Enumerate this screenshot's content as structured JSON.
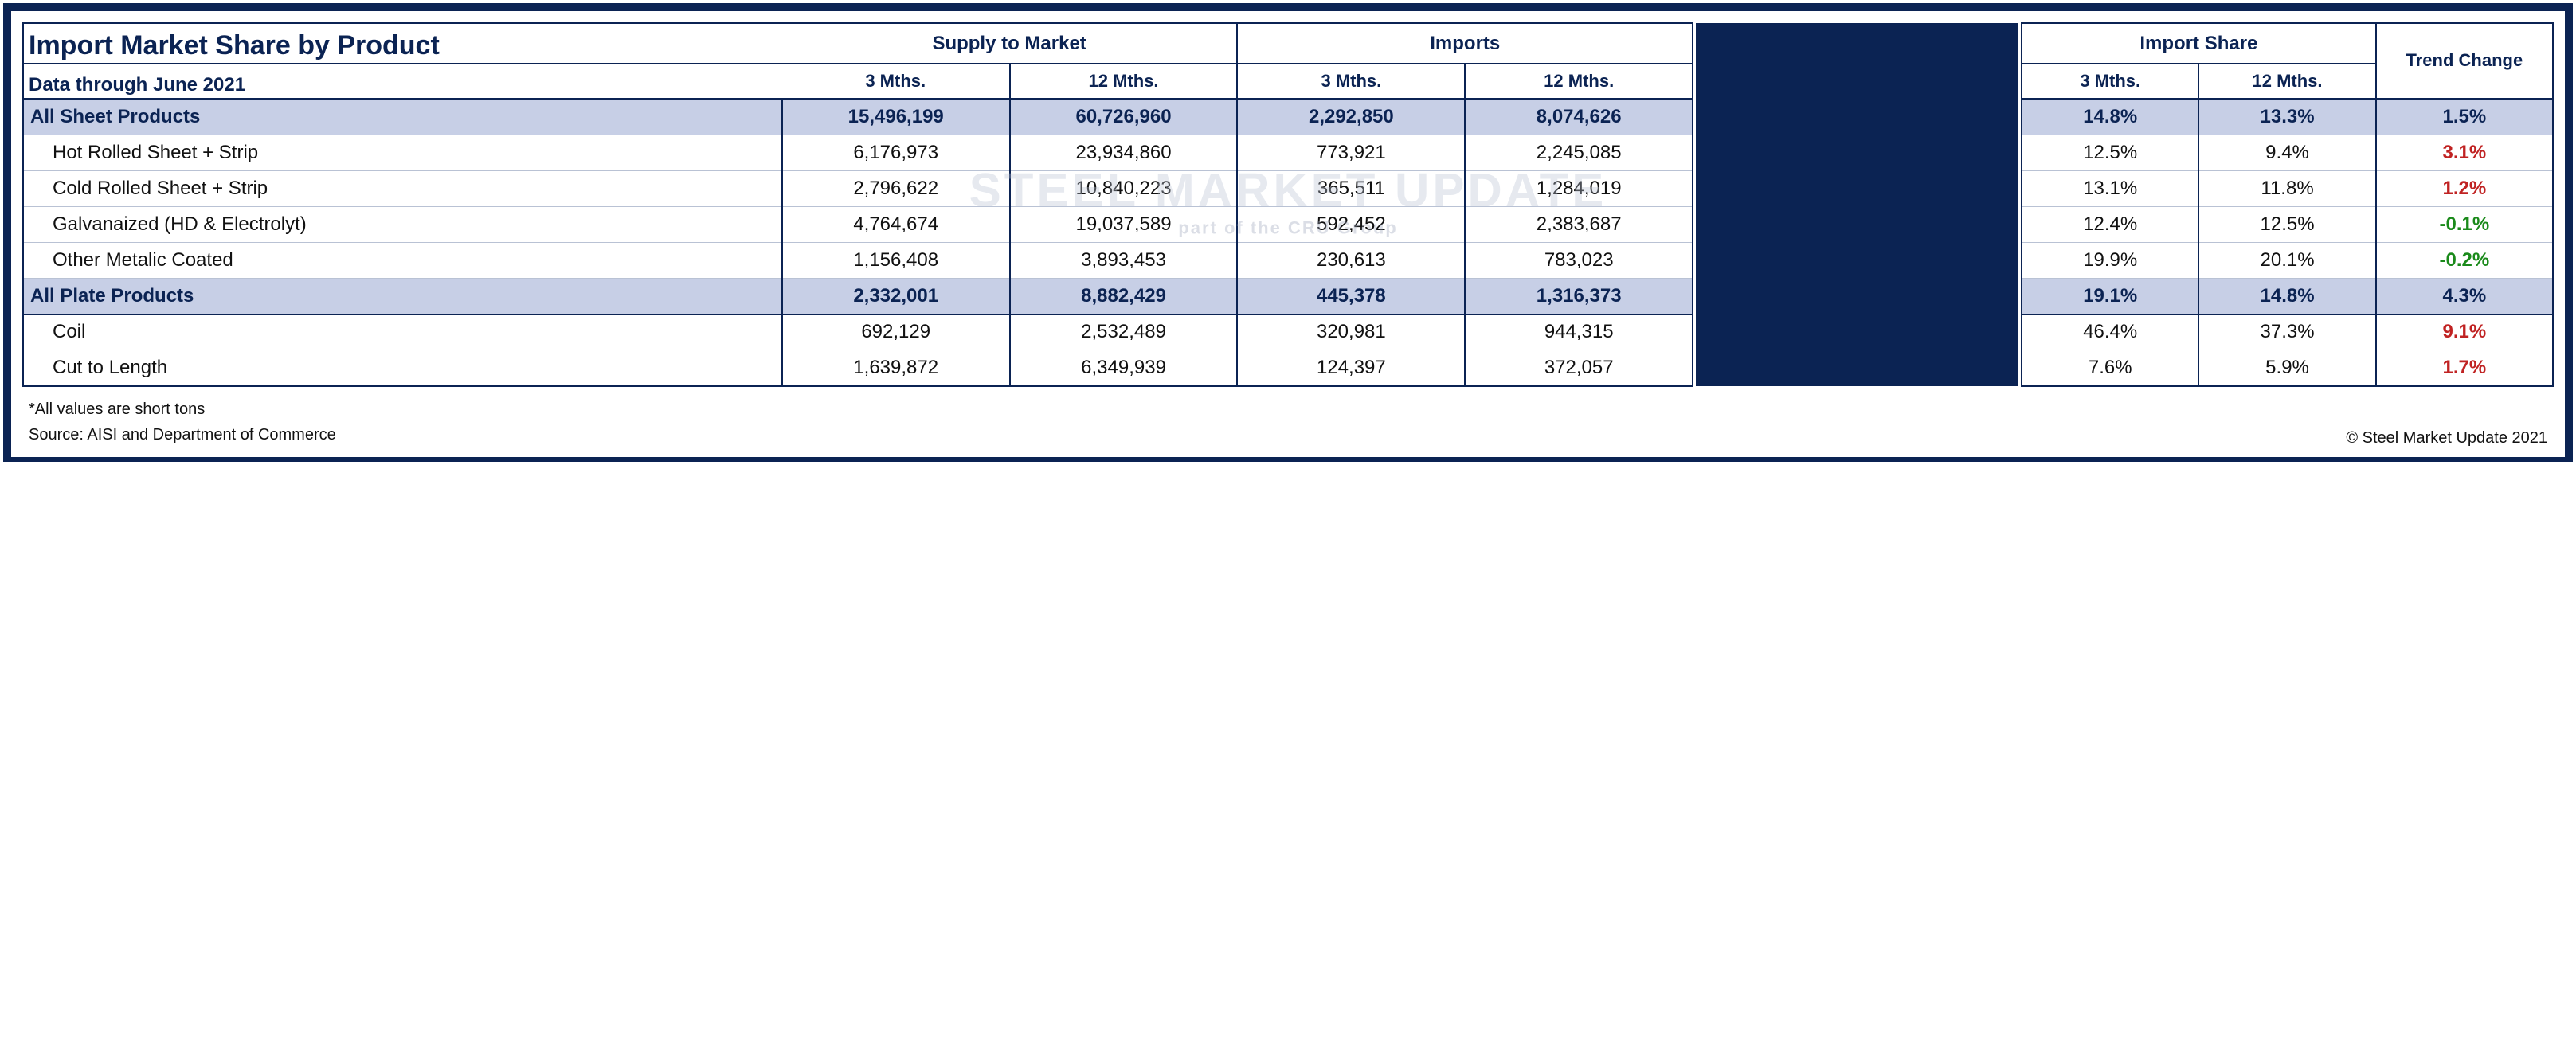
{
  "title": "Import Market Share by Product",
  "subtitle": "Data through June  2021",
  "watermark_main": "STEEL MARKET UPDATE",
  "watermark_sub": "part of the CRU Group",
  "columns": {
    "supply_group": "Supply to Market",
    "imports_group": "Imports",
    "share_group": "Import Share",
    "trend_group": "Trend Change",
    "m3": "3 Mths.",
    "m12": "12 Mths."
  },
  "rows": [
    {
      "section": true,
      "label": "All Sheet Products",
      "supply3": "15,496,199",
      "supply12": "60,726,960",
      "imp3": "2,292,850",
      "imp12": "8,074,626",
      "share3": "14.8%",
      "share12": "13.3%",
      "trend": "1.5%",
      "trend_sign": "pos"
    },
    {
      "section": false,
      "label": "Hot Rolled Sheet + Strip",
      "supply3": "6,176,973",
      "supply12": "23,934,860",
      "imp3": "773,921",
      "imp12": "2,245,085",
      "share3": "12.5%",
      "share12": "9.4%",
      "trend": "3.1%",
      "trend_sign": "pos"
    },
    {
      "section": false,
      "label": "Cold Rolled Sheet + Strip",
      "supply3": "2,796,622",
      "supply12": "10,840,223",
      "imp3": "365,511",
      "imp12": "1,284,019",
      "share3": "13.1%",
      "share12": "11.8%",
      "trend": "1.2%",
      "trend_sign": "pos"
    },
    {
      "section": false,
      "label": "Galvanaized (HD & Electrolyt)",
      "supply3": "4,764,674",
      "supply12": "19,037,589",
      "imp3": "592,452",
      "imp12": "2,383,687",
      "share3": "12.4%",
      "share12": "12.5%",
      "trend": "-0.1%",
      "trend_sign": "neg"
    },
    {
      "section": false,
      "label": "Other Metalic Coated",
      "supply3": "1,156,408",
      "supply12": "3,893,453",
      "imp3": "230,613",
      "imp12": "783,023",
      "share3": "19.9%",
      "share12": "20.1%",
      "trend": "-0.2%",
      "trend_sign": "neg"
    },
    {
      "section": true,
      "label": "All Plate Products",
      "supply3": "2,332,001",
      "supply12": "8,882,429",
      "imp3": "445,378",
      "imp12": "1,316,373",
      "share3": "19.1%",
      "share12": "14.8%",
      "trend": "4.3%",
      "trend_sign": "pos"
    },
    {
      "section": false,
      "label": "Coil",
      "supply3": "692,129",
      "supply12": "2,532,489",
      "imp3": "320,981",
      "imp12": "944,315",
      "share3": "46.4%",
      "share12": "37.3%",
      "trend": "9.1%",
      "trend_sign": "pos"
    },
    {
      "section": false,
      "label": "Cut to Length",
      "supply3": "1,639,872",
      "supply12": "6,349,939",
      "imp3": "124,397",
      "imp12": "372,057",
      "share3": "7.6%",
      "share12": "5.9%",
      "trend": "1.7%",
      "trend_sign": "pos",
      "last": true
    }
  ],
  "footnote1": "*All values are short tons",
  "footnote2": "Source: AISI and Department of Commerce",
  "copyright": "© Steel Market Update 2021",
  "colors": {
    "frame": "#0b2353",
    "section_bg": "#c7cfe6",
    "pos": "#c02222",
    "neg": "#1a8a1a"
  }
}
